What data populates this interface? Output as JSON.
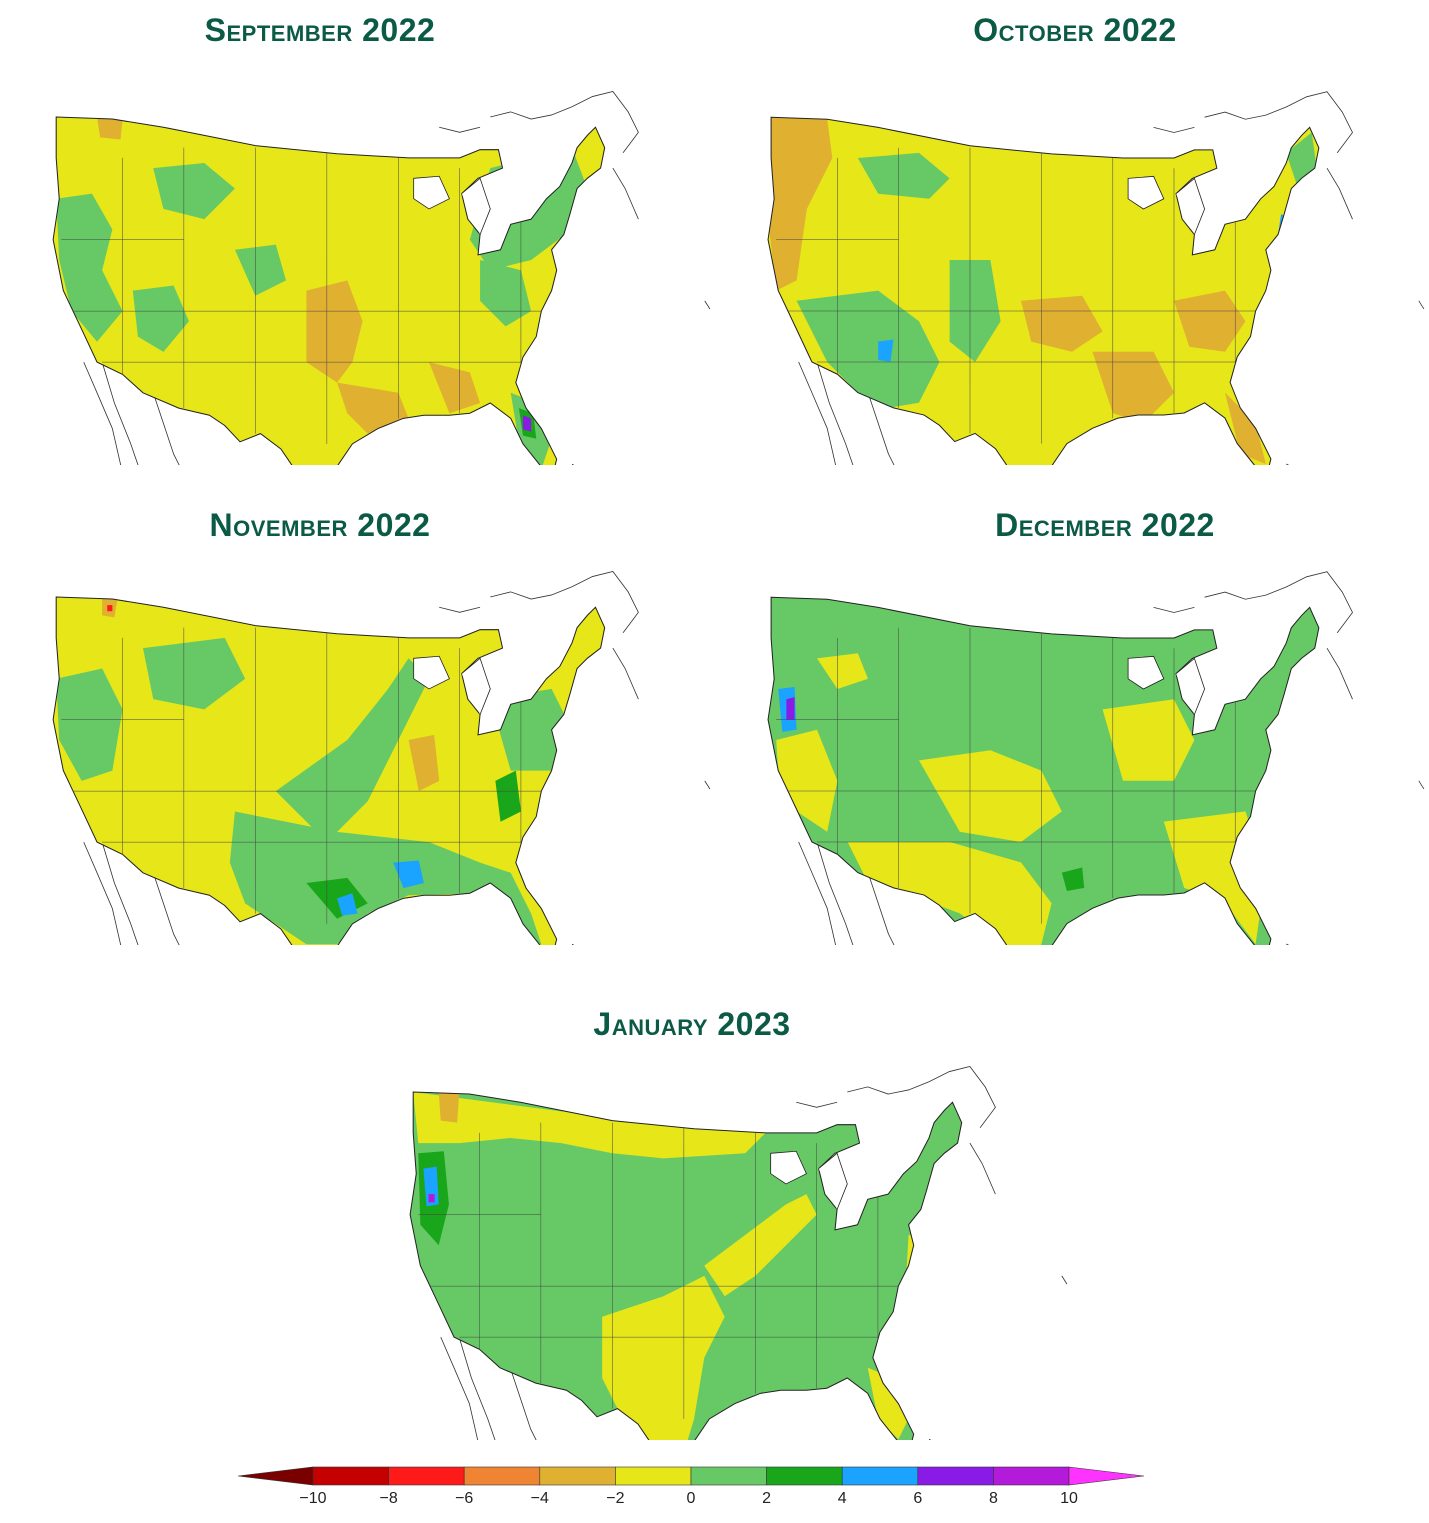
{
  "panels": [
    {
      "id": "sep-2022",
      "title": "September 2022"
    },
    {
      "id": "oct-2022",
      "title": "October 2022"
    },
    {
      "id": "nov-2022",
      "title": "November 2022"
    },
    {
      "id": "dec-2022",
      "title": "December 2022"
    },
    {
      "id": "jan-2023",
      "title": "January 2023"
    }
  ],
  "legend": {
    "ticks": [
      "−10",
      "−8",
      "−6",
      "−4",
      "−2",
      "0",
      "2",
      "4",
      "6",
      "8",
      "10"
    ],
    "colors": [
      "#7a0000",
      "#c40000",
      "#ff1a1a",
      "#ef8533",
      "#e0b030",
      "#e6e619",
      "#66c966",
      "#1aa61a",
      "#1aa3ff",
      "#8a1ae6",
      "#b31ad9",
      "#ff33ff"
    ]
  }
}
